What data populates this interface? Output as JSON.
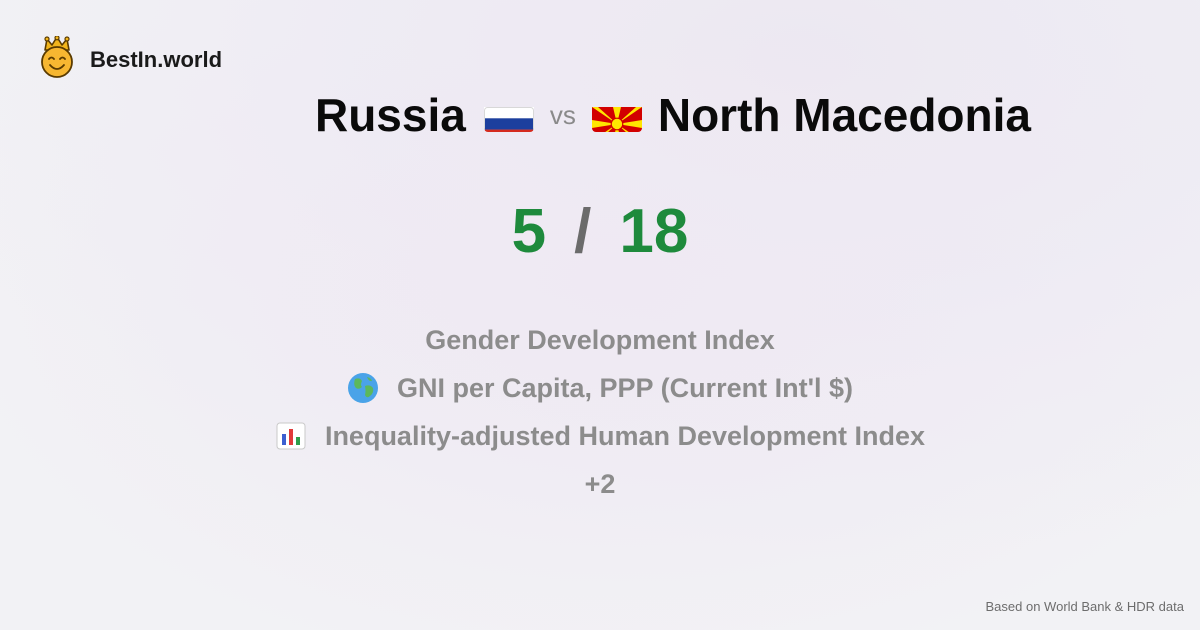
{
  "brand": {
    "name": "BestIn.world",
    "icon": "crown-smiley-icon"
  },
  "comparison": {
    "country_a": {
      "name": "Russia",
      "flag": "russia-flag-icon"
    },
    "vs_label": "vs",
    "country_b": {
      "name": "North Macedonia",
      "flag": "north-macedonia-flag-icon"
    }
  },
  "score": {
    "a": "5",
    "separator": "/",
    "b": "18"
  },
  "metrics": [
    {
      "label": "Gender Development Index",
      "icon": ""
    },
    {
      "label": "GNI per Capita, PPP (Current Int'l $)",
      "icon": "globe-icon"
    },
    {
      "label": "Inequality-adjusted Human Development Index",
      "icon": "bar-chart-icon"
    },
    {
      "label": "+2",
      "icon": ""
    }
  ],
  "footer": {
    "source": "Based on World Bank & HDR data"
  },
  "colors": {
    "score": "#1e8a3c",
    "muted": "#8c8c8c",
    "headline": "#0a0a0a"
  }
}
